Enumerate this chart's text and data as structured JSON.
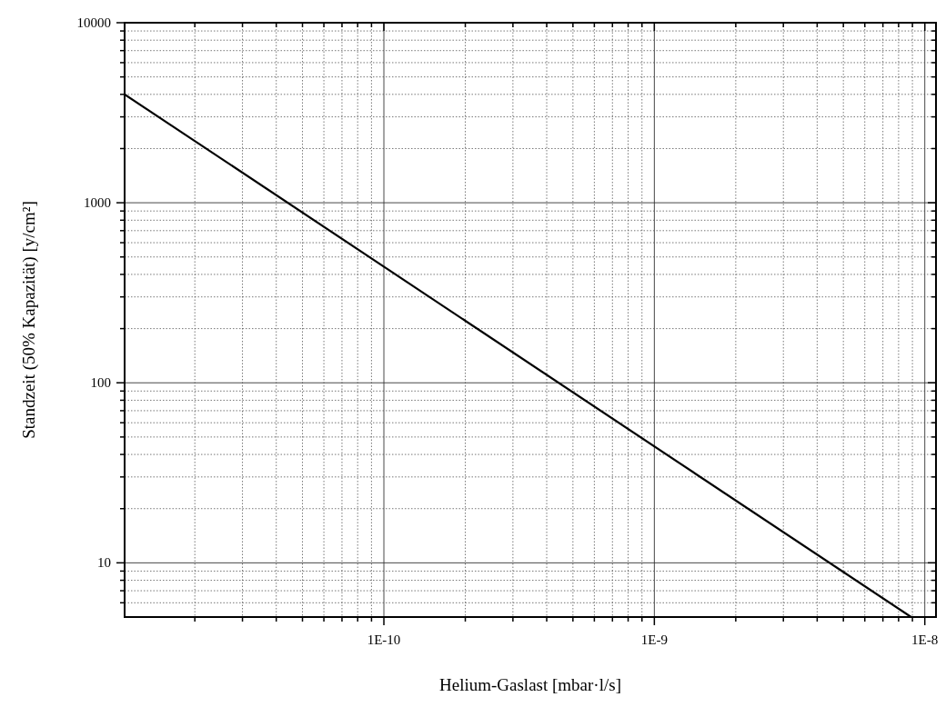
{
  "chart_data": {
    "type": "line",
    "xlabel": "Helium-Gaslast [mbar·l/s]",
    "ylabel": "Standzeit (50% Kapazität) [y/cm²]",
    "log": "xy",
    "grid": true,
    "line_style": "solid",
    "marker": "none",
    "xlim": [
      1.1e-11,
      1.1e-08
    ],
    "xticks": [
      {
        "value": 2e-11,
        "label": null
      },
      {
        "value": 3e-11,
        "label": null
      },
      {
        "value": 4e-11,
        "label": null
      },
      {
        "value": 5e-11,
        "label": null
      },
      {
        "value": 6e-11,
        "label": null
      },
      {
        "value": 7e-11,
        "label": null
      },
      {
        "value": 8e-11,
        "label": null
      },
      {
        "value": 9e-11,
        "label": null
      },
      {
        "value": 1e-10,
        "label": "1E-10"
      },
      {
        "value": 2e-10,
        "label": null
      },
      {
        "value": 3e-10,
        "label": null
      },
      {
        "value": 4e-10,
        "label": null
      },
      {
        "value": 5e-10,
        "label": null
      },
      {
        "value": 6e-10,
        "label": null
      },
      {
        "value": 7e-10,
        "label": null
      },
      {
        "value": 8e-10,
        "label": null
      },
      {
        "value": 9e-10,
        "label": null
      },
      {
        "value": 1e-09,
        "label": "1E-9"
      },
      {
        "value": 2e-09,
        "label": null
      },
      {
        "value": 3e-09,
        "label": null
      },
      {
        "value": 4e-09,
        "label": null
      },
      {
        "value": 5e-09,
        "label": null
      },
      {
        "value": 6e-09,
        "label": null
      },
      {
        "value": 7e-09,
        "label": null
      },
      {
        "value": 8e-09,
        "label": null
      },
      {
        "value": 9e-09,
        "label": null
      },
      {
        "value": 1e-08,
        "label": "1E-8"
      }
    ],
    "ylim": [
      5,
      10000
    ],
    "yticks": [
      {
        "value": 6,
        "label": null
      },
      {
        "value": 7,
        "label": null
      },
      {
        "value": 8,
        "label": null
      },
      {
        "value": 9,
        "label": null
      },
      10,
      {
        "value": 20,
        "label": null
      },
      {
        "value": 30,
        "label": null
      },
      {
        "value": 40,
        "label": null
      },
      {
        "value": 50,
        "label": null
      },
      {
        "value": 60,
        "label": null
      },
      {
        "value": 70,
        "label": null
      },
      {
        "value": 80,
        "label": null
      },
      {
        "value": 90,
        "label": null
      },
      100,
      {
        "value": 200,
        "label": null
      },
      {
        "value": 300,
        "label": null
      },
      {
        "value": 400,
        "label": null
      },
      {
        "value": 500,
        "label": null
      },
      {
        "value": 600,
        "label": null
      },
      {
        "value": 700,
        "label": null
      },
      {
        "value": 800,
        "label": null
      },
      {
        "value": 900,
        "label": null
      },
      1000,
      {
        "value": 2000,
        "label": null
      },
      {
        "value": 3000,
        "label": null
      },
      {
        "value": 4000,
        "label": null
      },
      {
        "value": 5000,
        "label": null
      },
      {
        "value": 6000,
        "label": null
      },
      {
        "value": 7000,
        "label": null
      },
      {
        "value": 8000,
        "label": null
      },
      {
        "value": 9000,
        "label": null
      },
      10000
    ],
    "series": [
      {
        "color": "#000000",
        "x": [
          1.1e-11,
          8.9e-09
        ],
        "values": [
          4000,
          5
        ]
      }
    ]
  }
}
